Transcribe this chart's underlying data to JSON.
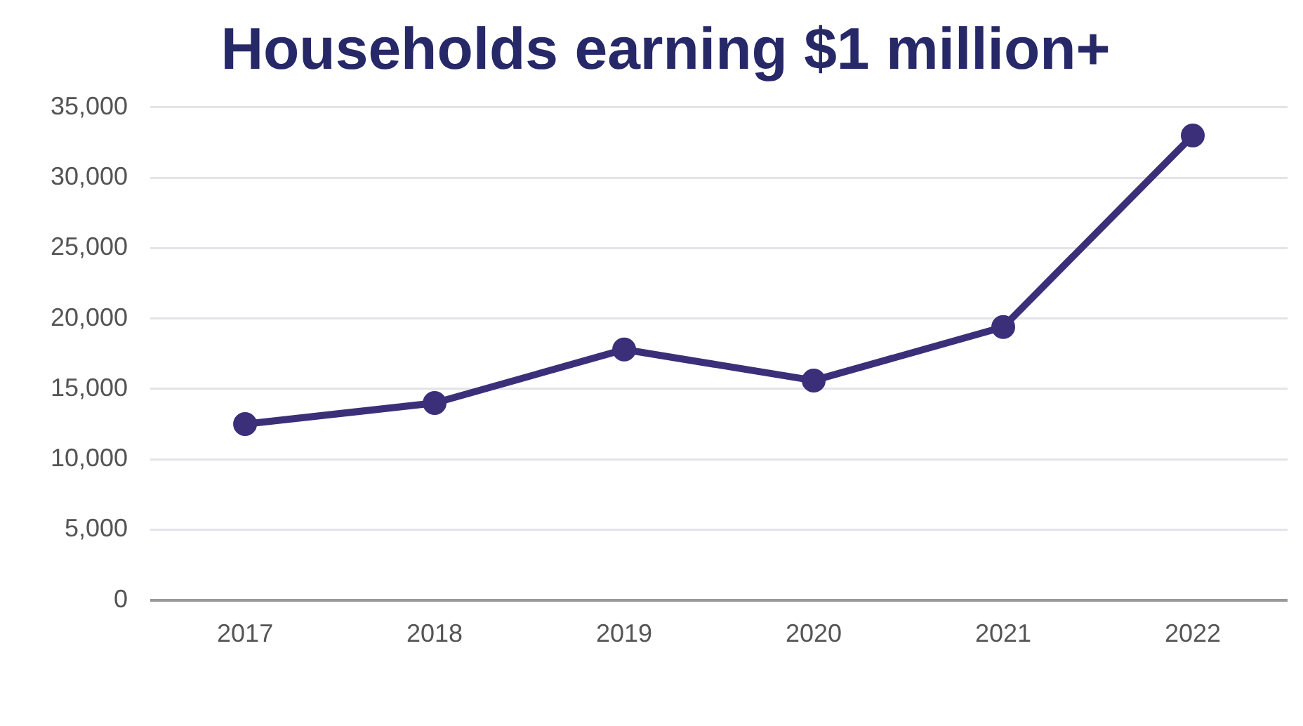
{
  "chart_data": {
    "type": "line",
    "title": "Households earning $1 million+",
    "categories": [
      "2017",
      "2018",
      "2019",
      "2020",
      "2021",
      "2022"
    ],
    "series": [
      {
        "color": "#3b2f7a",
        "values": [
          12500,
          14000,
          17800,
          15600,
          19400,
          33000
        ]
      }
    ],
    "ylim": [
      0,
      35000
    ],
    "yticks": [
      0,
      {
        "value": 5000,
        "label": "5,000"
      },
      {
        "value": 10000,
        "label": "10,000"
      },
      {
        "value": 15000,
        "label": "15,000"
      },
      {
        "value": 20000,
        "label": "20,000"
      },
      {
        "value": 25000,
        "label": "25,000"
      },
      {
        "value": 30000,
        "label": "30,000"
      },
      {
        "value": 35000,
        "label": "35,000"
      }
    ],
    "grid": "y",
    "legend": false,
    "marker": "circle",
    "line_style": "solid"
  }
}
